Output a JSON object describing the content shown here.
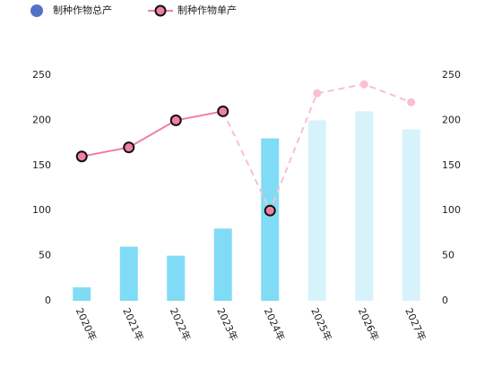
{
  "chart_data": {
    "type": "bar",
    "categories": [
      "2020年",
      "2021年",
      "2022年",
      "2023年",
      "2024年",
      "2025年",
      "2026年",
      "2027年"
    ],
    "series": [
      {
        "name": "制种作物总产",
        "type": "bar",
        "color": "#5470c6",
        "values": [
          15,
          60,
          50,
          80,
          180,
          200,
          210,
          190
        ],
        "point_colors": [
          "#80dcf5",
          "#80dcf5",
          "#80dcf5",
          "#80dcf5",
          "#80dcf5",
          "#d6f3fb",
          "#d6f3fb",
          "#d6f3fb"
        ]
      },
      {
        "name": "制种作物单产",
        "type": "line",
        "axis": "y2",
        "color": "#f07fa0",
        "values": [
          160,
          170,
          200,
          210,
          100,
          230,
          240,
          220
        ],
        "point_colors": [
          "#f07fa0",
          "#f07fa0",
          "#f07fa0",
          "#f07fa0",
          "#f07fa0",
          "#f9bfd2",
          "#f9bfd2",
          "#f9bfd2"
        ],
        "line_styles": [
          "solid",
          "solid",
          "solid",
          "solid",
          "dashed",
          "dashed",
          "dashed",
          "dashed"
        ]
      }
    ],
    "ylim": [
      0,
      250
    ],
    "yticks": [
      0,
      50,
      100,
      150,
      200,
      250
    ],
    "y2lim": [
      0,
      250
    ],
    "y2ticks": [
      0,
      50,
      100,
      150,
      200,
      250
    ],
    "grid": false
  }
}
